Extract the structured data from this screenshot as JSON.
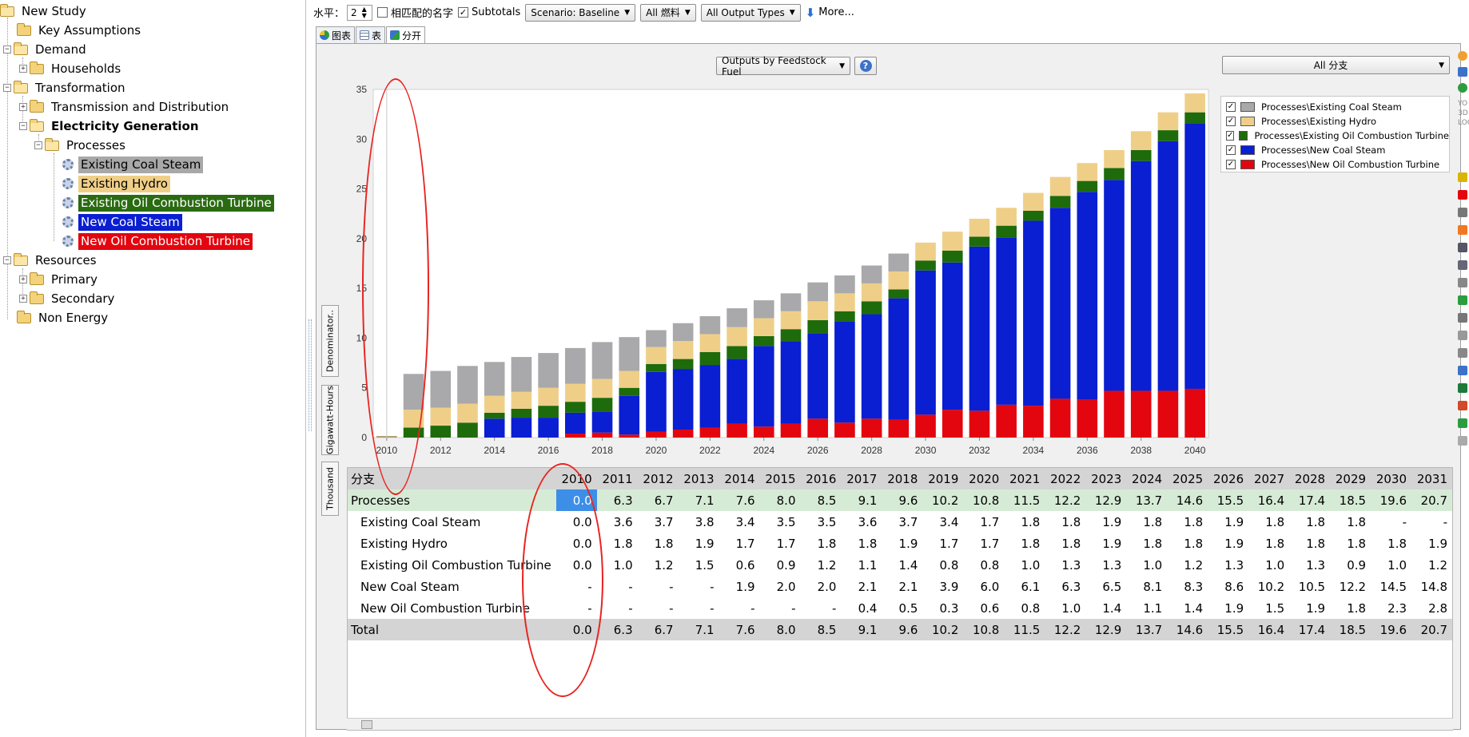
{
  "tree": {
    "root": "New Study",
    "key_assumptions": "Key Assumptions",
    "demand": "Demand",
    "households": "Households",
    "transformation": "Transformation",
    "transmission": "Transmission and Distribution",
    "electricity_generation": "Electricity Generation",
    "processes": "Processes",
    "existing_coal": "Existing Coal Steam",
    "existing_hydro": "Existing Hydro",
    "existing_oil": "Existing Oil Combustion Turbine",
    "new_coal": "New Coal Steam",
    "new_oil": "New Oil Combustion Turbine",
    "resources": "Resources",
    "primary": "Primary",
    "secondary": "Secondary",
    "non_energy": "Non Energy"
  },
  "toolbar": {
    "level_label": "水平：",
    "level_value": "2",
    "match_names_label": "相匹配的名字",
    "match_names_checked": false,
    "subtotals_label": "Subtotals",
    "subtotals_checked": true,
    "scenario": "Scenario: Baseline",
    "fuels": "All 燃料",
    "output_types": "All Output Types",
    "more": "More..."
  },
  "tabs": [
    "图表",
    "表",
    "分开"
  ],
  "chart_selector": "Outputs by Feedstock Fuel",
  "help": "?",
  "branch_selector": "All 分支",
  "vertical_tabs": [
    "Denominator..",
    "Gigawatt-Hours",
    "Thousand"
  ],
  "right_strip_labels": [
    "YO",
    "3D",
    "LOG"
  ],
  "colors": {
    "existing_coal": "#a9a9ab",
    "existing_hydro": "#efcf88",
    "existing_oil": "#1e6b0c",
    "new_coal": "#0a1ed2",
    "new_oil": "#e3060f",
    "tree_coal_bg": "#a8a8a8",
    "tree_hydro_bg": "#efcf88",
    "tree_oil_bg": "#2a6b12",
    "tree_newcoal_bg": "#0a1ed2",
    "tree_newoil_bg": "#e3060f",
    "selected_cell": "#3d8ee6",
    "processes_row": "#d6ebd6",
    "annotation": "#e8231f"
  },
  "chart_data": {
    "type": "bar",
    "stacked": true,
    "categories": [
      2010,
      2011,
      2012,
      2013,
      2014,
      2015,
      2016,
      2017,
      2018,
      2019,
      2020,
      2021,
      2022,
      2023,
      2024,
      2025,
      2026,
      2027,
      2028,
      2029,
      2030,
      2031,
      2032,
      2033,
      2034,
      2035,
      2036,
      2037,
      2038,
      2039,
      2040
    ],
    "x_tick_labels": [
      "2010",
      "2012",
      "2014",
      "2016",
      "2018",
      "2020",
      "2022",
      "2024",
      "2026",
      "2028",
      "2030",
      "2032",
      "2034",
      "2036",
      "2038",
      "2040"
    ],
    "y_tick_labels": [
      "0",
      "5",
      "10",
      "15",
      "20",
      "25",
      "30",
      "35"
    ],
    "ylim": [
      0,
      35
    ],
    "grid": false,
    "legend_position": "top-right",
    "series": [
      {
        "name": "Processes\\New Oil Combustion Turbine",
        "key": "new_oil",
        "values": [
          0,
          0,
          0,
          0,
          0,
          0,
          0,
          0.4,
          0.5,
          0.3,
          0.6,
          0.8,
          1.0,
          1.4,
          1.1,
          1.4,
          1.9,
          1.5,
          1.9,
          1.8,
          2.3,
          2.8,
          2.7,
          3.3,
          3.2,
          3.9,
          3.8,
          4.7,
          4.7,
          4.7,
          4.9
        ]
      },
      {
        "name": "Processes\\New Coal Steam",
        "key": "new_coal",
        "values": [
          0,
          0,
          0,
          0,
          1.9,
          2.0,
          2.0,
          2.1,
          2.1,
          3.9,
          6.0,
          6.1,
          6.3,
          6.5,
          8.1,
          8.3,
          8.6,
          10.2,
          10.5,
          12.2,
          14.5,
          14.8,
          16.5,
          16.8,
          18.6,
          19.2,
          20.9,
          21.2,
          23.1,
          25.1,
          26.7
        ]
      },
      {
        "name": "Processes\\Existing Oil Combustion Turbine",
        "key": "existing_oil",
        "values": [
          0,
          1.0,
          1.2,
          1.5,
          0.6,
          0.9,
          1.2,
          1.1,
          1.4,
          0.8,
          0.8,
          1.0,
          1.3,
          1.3,
          1.0,
          1.2,
          1.3,
          1.0,
          1.3,
          0.9,
          1.0,
          1.2,
          1.0,
          1.2,
          1.0,
          1.2,
          1.1,
          1.2,
          1.1,
          1.1,
          1.1
        ]
      },
      {
        "name": "Processes\\Existing Hydro",
        "key": "existing_hydro",
        "values": [
          0,
          1.8,
          1.8,
          1.9,
          1.7,
          1.7,
          1.8,
          1.8,
          1.9,
          1.7,
          1.7,
          1.8,
          1.8,
          1.9,
          1.8,
          1.8,
          1.9,
          1.8,
          1.8,
          1.8,
          1.8,
          1.9,
          1.8,
          1.8,
          1.8,
          1.9,
          1.8,
          1.8,
          1.9,
          1.8,
          1.9
        ]
      },
      {
        "name": "Processes\\Existing Coal Steam",
        "key": "existing_coal",
        "values": [
          0,
          3.6,
          3.7,
          3.8,
          3.4,
          3.5,
          3.5,
          3.6,
          3.7,
          3.4,
          1.7,
          1.8,
          1.8,
          1.9,
          1.8,
          1.8,
          1.9,
          1.8,
          1.8,
          1.8,
          0,
          0,
          0,
          0,
          0,
          0,
          0,
          0,
          0,
          0,
          0
        ]
      }
    ],
    "legend_order": [
      "existing_coal",
      "existing_hydro",
      "existing_oil",
      "new_coal",
      "new_oil"
    ]
  },
  "table": {
    "header_label": "分支",
    "years": [
      "2010",
      "2011",
      "2012",
      "2013",
      "2014",
      "2015",
      "2016",
      "2017",
      "2018",
      "2019",
      "2020",
      "2021",
      "2022",
      "2023",
      "2024",
      "2025",
      "2026",
      "2027",
      "2028",
      "2029",
      "2030",
      "2031"
    ],
    "rows": [
      {
        "label": "Processes",
        "kind": "proc",
        "values": [
          "0.0",
          "6.3",
          "6.7",
          "7.1",
          "7.6",
          "8.0",
          "8.5",
          "9.1",
          "9.6",
          "10.2",
          "10.8",
          "11.5",
          "12.2",
          "12.9",
          "13.7",
          "14.6",
          "15.5",
          "16.4",
          "17.4",
          "18.5",
          "19.6",
          "20.7"
        ]
      },
      {
        "label": "Existing Coal Steam",
        "kind": "child",
        "values": [
          "0.0",
          "3.6",
          "3.7",
          "3.8",
          "3.4",
          "3.5",
          "3.5",
          "3.6",
          "3.7",
          "3.4",
          "1.7",
          "1.8",
          "1.8",
          "1.9",
          "1.8",
          "1.8",
          "1.9",
          "1.8",
          "1.8",
          "1.8",
          "-",
          "-"
        ]
      },
      {
        "label": "Existing Hydro",
        "kind": "child",
        "values": [
          "0.0",
          "1.8",
          "1.8",
          "1.9",
          "1.7",
          "1.7",
          "1.8",
          "1.8",
          "1.9",
          "1.7",
          "1.7",
          "1.8",
          "1.8",
          "1.9",
          "1.8",
          "1.8",
          "1.9",
          "1.8",
          "1.8",
          "1.8",
          "1.8",
          "1.9"
        ]
      },
      {
        "label": "Existing Oil Combustion Turbine",
        "kind": "child",
        "values": [
          "0.0",
          "1.0",
          "1.2",
          "1.5",
          "0.6",
          "0.9",
          "1.2",
          "1.1",
          "1.4",
          "0.8",
          "0.8",
          "1.0",
          "1.3",
          "1.3",
          "1.0",
          "1.2",
          "1.3",
          "1.0",
          "1.3",
          "0.9",
          "1.0",
          "1.2"
        ]
      },
      {
        "label": "New Coal Steam",
        "kind": "child",
        "values": [
          "-",
          "-",
          "-",
          "-",
          "1.9",
          "2.0",
          "2.0",
          "2.1",
          "2.1",
          "3.9",
          "6.0",
          "6.1",
          "6.3",
          "6.5",
          "8.1",
          "8.3",
          "8.6",
          "10.2",
          "10.5",
          "12.2",
          "14.5",
          "14.8"
        ]
      },
      {
        "label": "New Oil Combustion Turbine",
        "kind": "child",
        "values": [
          "-",
          "-",
          "-",
          "-",
          "-",
          "-",
          "-",
          "0.4",
          "0.5",
          "0.3",
          "0.6",
          "0.8",
          "1.0",
          "1.4",
          "1.1",
          "1.4",
          "1.9",
          "1.5",
          "1.9",
          "1.8",
          "2.3",
          "2.8"
        ]
      },
      {
        "label": "Total",
        "kind": "tot",
        "values": [
          "0.0",
          "6.3",
          "6.7",
          "7.1",
          "7.6",
          "8.0",
          "8.5",
          "9.1",
          "9.6",
          "10.2",
          "10.8",
          "11.5",
          "12.2",
          "12.9",
          "13.7",
          "14.6",
          "15.5",
          "16.4",
          "17.4",
          "18.5",
          "19.6",
          "20.7"
        ]
      }
    ]
  }
}
